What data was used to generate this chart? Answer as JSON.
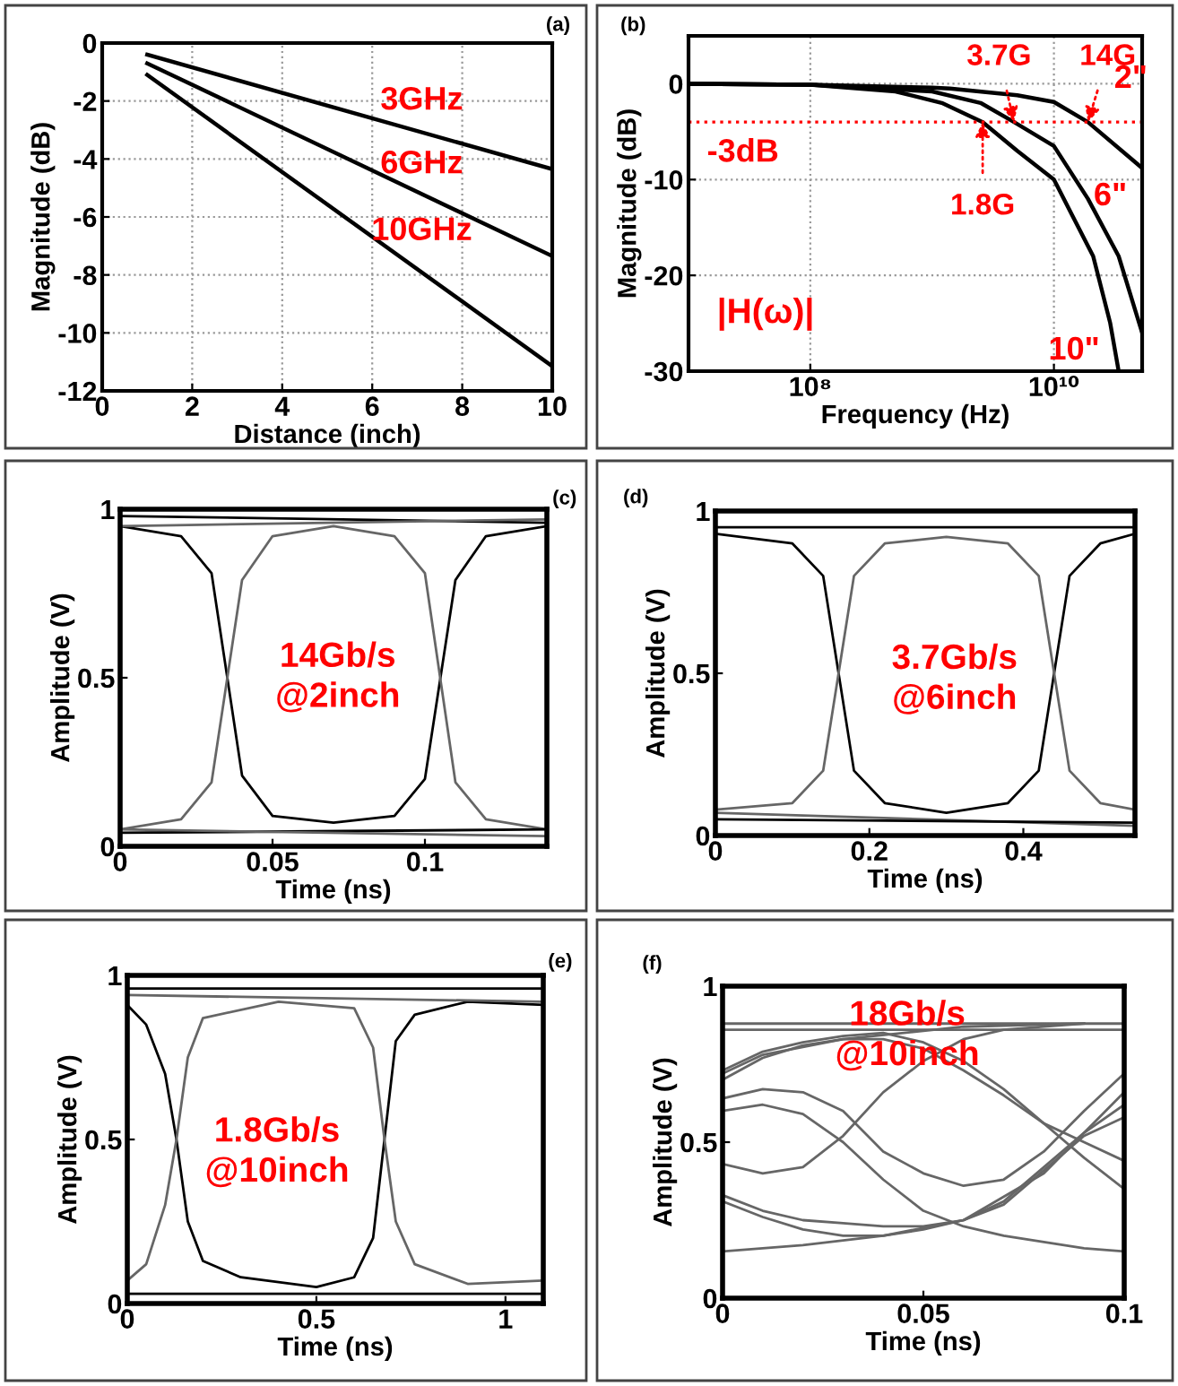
{
  "chart_data": [
    {
      "type": "line",
      "xlabel": "Distance (inch)",
      "ylabel": "Magnitude (dB)",
      "xlim": [
        0,
        10
      ],
      "ylim": [
        -12,
        0
      ],
      "xticks": [
        0,
        2,
        4,
        6,
        8,
        10
      ],
      "yticks": [
        0,
        -2,
        -4,
        -6,
        -8,
        -10,
        -12
      ],
      "grid": true,
      "annotations": [
        "(a)"
      ],
      "series": [
        {
          "name": "3GHz",
          "color": "#000000",
          "x": [
            1,
            10
          ],
          "values": [
            -0.4,
            -4.35
          ]
        },
        {
          "name": "6GHz",
          "color": "#000000",
          "x": [
            1,
            10
          ],
          "values": [
            -0.7,
            -7.35
          ]
        },
        {
          "name": "10GHz",
          "color": "#000000",
          "x": [
            1,
            10
          ],
          "values": [
            -1.1,
            -11.15
          ]
        }
      ]
    },
    {
      "type": "line",
      "xlabel": "Frequency (Hz)",
      "ylabel": "Magnitude (dB)",
      "log": "x",
      "xlim": [
        10000000,
        53000000000
      ],
      "ylim": [
        -30,
        5
      ],
      "xticks": [
        {
          "value": 100000000,
          "label": "10⁸"
        },
        {
          "value": 10000000000,
          "label": "10¹⁰"
        }
      ],
      "yticks": [
        0,
        -10,
        -20,
        -30
      ],
      "grid": true,
      "annotations": [
        "(b)",
        "|H(ω)|",
        {
          "text": "3.7G",
          "x": 4700000000,
          "y": -4
        },
        {
          "text": "14G",
          "x": 19000000000,
          "y": -4
        },
        {
          "text": "1.8G",
          "x": 2600000000,
          "y": -4
        }
      ],
      "ref_lines": [
        {
          "axis": "y",
          "value": -4,
          "label": "-3dB",
          "color": "#ff0000",
          "line_style": "dotted"
        }
      ],
      "series": [
        {
          "name": "2\"",
          "color": "#000000",
          "x": [
            10000000,
            100000000,
            1000000000,
            1400000000,
            5000000000,
            10000000000,
            19000000000,
            53000000000
          ],
          "values": [
            0,
            -0.1,
            -0.4,
            -0.5,
            -1.2,
            -1.9,
            -4,
            -8.8
          ]
        },
        {
          "name": "6\"",
          "color": "#000000",
          "x": [
            10000000,
            100000000,
            1000000000,
            2500000000,
            4700000000,
            10000000000,
            19000000000,
            34000000000,
            53000000000
          ],
          "values": [
            0,
            -0.1,
            -0.8,
            -2,
            -4,
            -6.5,
            -12,
            -18,
            -26
          ]
        },
        {
          "name": "10\"",
          "color": "#000000",
          "x": [
            10000000,
            100000000,
            500000000,
            1200000000,
            2600000000,
            5000000000,
            10000000000,
            21000000000,
            29000000000,
            34000000000
          ],
          "values": [
            0,
            -0.1,
            -0.8,
            -2,
            -4,
            -7,
            -10,
            -18,
            -25,
            -30
          ]
        }
      ]
    },
    {
      "type": "line",
      "xlabel": "Time (ns)",
      "ylabel": "Amplitude (V)",
      "xlim": [
        0,
        0.14
      ],
      "ylim": [
        0,
        1
      ],
      "xticks": [
        0,
        0.05,
        0.1
      ],
      "yticks": [
        0,
        0.5,
        1
      ],
      "annotations": [
        "(c)",
        "14Gb/s\n@2inch"
      ],
      "series": [
        {
          "color": "#000000",
          "x": [
            0,
            0.02,
            0.03,
            0.04,
            0.05,
            0.07,
            0.09,
            0.1,
            0.11,
            0.12,
            0.14
          ],
          "values": [
            0.95,
            0.92,
            0.81,
            0.21,
            0.09,
            0.07,
            0.09,
            0.2,
            0.79,
            0.92,
            0.95
          ]
        },
        {
          "color": "#666666",
          "x": [
            0,
            0.02,
            0.03,
            0.04,
            0.05,
            0.07,
            0.09,
            0.1,
            0.11,
            0.12,
            0.14
          ],
          "values": [
            0.05,
            0.08,
            0.19,
            0.79,
            0.92,
            0.95,
            0.92,
            0.81,
            0.19,
            0.08,
            0.05
          ]
        },
        {
          "color": "#000000",
          "x": [
            0,
            0.14
          ],
          "values": [
            0.98,
            0.96
          ]
        },
        {
          "color": "#666666",
          "x": [
            0,
            0.14
          ],
          "values": [
            0.95,
            0.97
          ]
        },
        {
          "color": "#000000",
          "x": [
            0,
            0.14
          ],
          "values": [
            0.04,
            0.05
          ]
        },
        {
          "color": "#666666",
          "x": [
            0,
            0.14
          ],
          "values": [
            0.05,
            0.03
          ]
        }
      ]
    },
    {
      "type": "line",
      "xlabel": "Time (ns)",
      "ylabel": "Amplitude (V)",
      "xlim": [
        0,
        0.545
      ],
      "ylim": [
        0,
        1
      ],
      "xticks": [
        0,
        0.2,
        0.4
      ],
      "yticks": [
        0,
        0.5,
        1
      ],
      "annotations": [
        "(d)",
        "3.7Gb/s\n@6inch"
      ],
      "series": [
        {
          "color": "#000000",
          "x": [
            0,
            0.1,
            0.14,
            0.16,
            0.18,
            0.22,
            0.3,
            0.38,
            0.42,
            0.44,
            0.46,
            0.5,
            0.545
          ],
          "values": [
            0.93,
            0.9,
            0.8,
            0.5,
            0.2,
            0.1,
            0.07,
            0.1,
            0.2,
            0.5,
            0.8,
            0.9,
            0.93
          ]
        },
        {
          "color": "#666666",
          "x": [
            0,
            0.1,
            0.14,
            0.16,
            0.18,
            0.22,
            0.3,
            0.38,
            0.42,
            0.44,
            0.46,
            0.5,
            0.545
          ],
          "values": [
            0.08,
            0.1,
            0.2,
            0.5,
            0.8,
            0.9,
            0.92,
            0.9,
            0.8,
            0.5,
            0.2,
            0.1,
            0.08
          ]
        },
        {
          "color": "#000000",
          "x": [
            0,
            0.545
          ],
          "values": [
            0.95,
            0.95
          ]
        },
        {
          "color": "#666666",
          "x": [
            0,
            0.545
          ],
          "values": [
            0.07,
            0.03
          ]
        },
        {
          "color": "#000000",
          "x": [
            0,
            0.545
          ],
          "values": [
            0.05,
            0.04
          ]
        }
      ]
    },
    {
      "type": "line",
      "xlabel": "Time (ns)",
      "ylabel": "Amplitude (V)",
      "xlim": [
        0,
        1.1
      ],
      "ylim": [
        0,
        1
      ],
      "xticks": [
        0,
        0.5,
        1
      ],
      "yticks": [
        0,
        0.5,
        1
      ],
      "annotations": [
        "(e)",
        "1.8Gb/s\n@10inch"
      ],
      "series": [
        {
          "color": "#000000",
          "x": [
            0,
            0.05,
            0.1,
            0.13,
            0.16,
            0.2,
            0.3,
            0.5,
            0.6,
            0.65,
            0.68,
            0.71,
            0.76,
            0.9,
            1.1
          ],
          "values": [
            0.91,
            0.85,
            0.7,
            0.5,
            0.25,
            0.13,
            0.08,
            0.05,
            0.08,
            0.2,
            0.5,
            0.8,
            0.88,
            0.92,
            0.91
          ]
        },
        {
          "color": "#666666",
          "x": [
            0,
            0.05,
            0.1,
            0.13,
            0.16,
            0.2,
            0.4,
            0.6,
            0.65,
            0.68,
            0.71,
            0.76,
            0.9,
            1.1
          ],
          "values": [
            0.07,
            0.12,
            0.3,
            0.5,
            0.75,
            0.87,
            0.92,
            0.9,
            0.78,
            0.5,
            0.25,
            0.12,
            0.06,
            0.07
          ]
        },
        {
          "color": "#000000",
          "x": [
            0,
            1.1
          ],
          "values": [
            0.96,
            0.96
          ]
        },
        {
          "color": "#666666",
          "x": [
            0,
            1.1
          ],
          "values": [
            0.94,
            0.92
          ]
        },
        {
          "color": "#000000",
          "x": [
            0,
            1.1
          ],
          "values": [
            0.03,
            0.03
          ]
        }
      ]
    },
    {
      "type": "line",
      "xlabel": "Time (ns)",
      "ylabel": "Amplitude (V)",
      "xlim": [
        0,
        0.1
      ],
      "ylim": [
        0,
        1
      ],
      "xticks": [
        0,
        0.05,
        0.1
      ],
      "yticks": [
        0,
        0.5,
        1
      ],
      "annotations": [
        "(f)",
        "18Gb/s\n@10inch"
      ],
      "series": [
        {
          "color": "#666666",
          "x": [
            0,
            0.1
          ],
          "values": [
            0.88,
            0.88
          ]
        },
        {
          "color": "#666666",
          "x": [
            0,
            0.1
          ],
          "values": [
            0.86,
            0.86
          ]
        },
        {
          "color": "#666666",
          "x": [
            0,
            0.01,
            0.03,
            0.06,
            0.09
          ],
          "values": [
            0.72,
            0.78,
            0.83,
            0.87,
            0.88
          ]
        },
        {
          "color": "#666666",
          "x": [
            0,
            0.01,
            0.02,
            0.03,
            0.04,
            0.05,
            0.06,
            0.07,
            0.08,
            0.09,
            0.1
          ],
          "values": [
            0.7,
            0.77,
            0.81,
            0.83,
            0.83,
            0.8,
            0.73,
            0.65,
            0.56,
            0.5,
            0.44
          ]
        },
        {
          "color": "#666666",
          "x": [
            0,
            0.01,
            0.02,
            0.03,
            0.04,
            0.05,
            0.06,
            0.07,
            0.08,
            0.09,
            0.1
          ],
          "values": [
            0.73,
            0.79,
            0.82,
            0.84,
            0.85,
            0.82,
            0.76,
            0.67,
            0.56,
            0.45,
            0.35
          ]
        },
        {
          "color": "#666666",
          "x": [
            0,
            0.01,
            0.02,
            0.03,
            0.04,
            0.05,
            0.06,
            0.07,
            0.08,
            0.09,
            0.1
          ],
          "values": [
            0.64,
            0.67,
            0.66,
            0.6,
            0.47,
            0.4,
            0.36,
            0.38,
            0.47,
            0.6,
            0.72
          ]
        },
        {
          "color": "#666666",
          "x": [
            0,
            0.01,
            0.02,
            0.03,
            0.04,
            0.05,
            0.06,
            0.07,
            0.08,
            0.09,
            0.1
          ],
          "values": [
            0.6,
            0.62,
            0.59,
            0.5,
            0.38,
            0.28,
            0.23,
            0.2,
            0.18,
            0.16,
            0.15
          ]
        },
        {
          "color": "#666666",
          "x": [
            0,
            0.01,
            0.02,
            0.03,
            0.04,
            0.05,
            0.06,
            0.07,
            0.08,
            0.09
          ],
          "values": [
            0.43,
            0.4,
            0.42,
            0.52,
            0.66,
            0.76,
            0.83,
            0.86,
            0.87,
            0.88
          ]
        },
        {
          "color": "#666666",
          "x": [
            0,
            0.01,
            0.02,
            0.03,
            0.04,
            0.05,
            0.06,
            0.07,
            0.08,
            0.09,
            0.1
          ],
          "values": [
            0.33,
            0.28,
            0.25,
            0.24,
            0.23,
            0.23,
            0.25,
            0.31,
            0.42,
            0.53,
            0.62
          ]
        },
        {
          "color": "#666666",
          "x": [
            0,
            0.01,
            0.02,
            0.03,
            0.04,
            0.05,
            0.06,
            0.07,
            0.08,
            0.09,
            0.1
          ],
          "values": [
            0.31,
            0.26,
            0.22,
            0.2,
            0.2,
            0.22,
            0.25,
            0.3,
            0.41,
            0.52,
            0.58
          ]
        },
        {
          "color": "#666666",
          "x": [
            0,
            0.02,
            0.04,
            0.06,
            0.08,
            0.1
          ],
          "values": [
            0.15,
            0.17,
            0.2,
            0.25,
            0.4,
            0.66
          ]
        }
      ]
    }
  ]
}
